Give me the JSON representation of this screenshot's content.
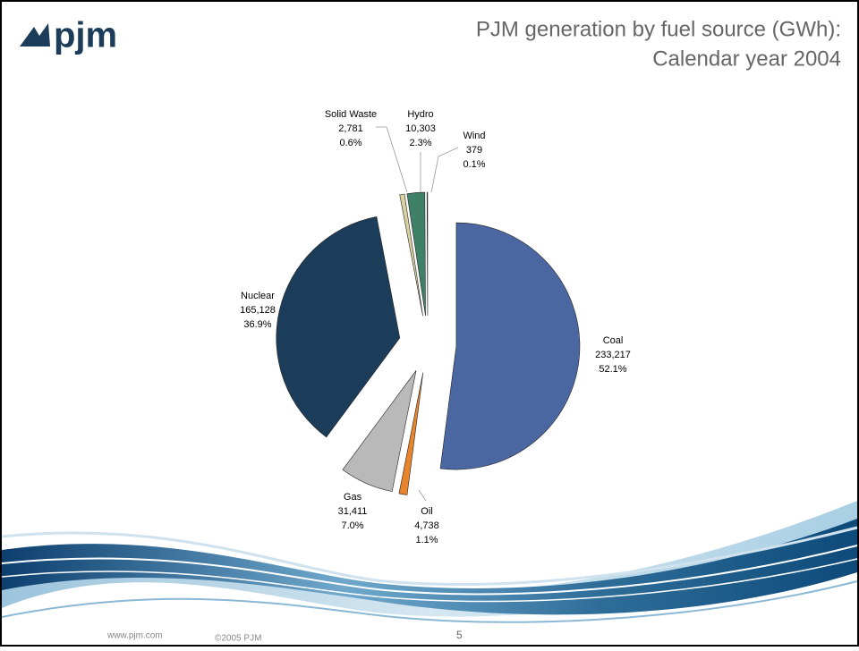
{
  "logo": "pjm",
  "footer": {
    "url": "www.pjm.com",
    "copyright": "©2005 PJM",
    "page": "5"
  },
  "chart_data": {
    "type": "pie",
    "title": "PJM generation by fuel source (GWh):",
    "subtitle": "Calendar year 2004",
    "categories": [
      "Coal",
      "Oil",
      "Gas",
      "Nuclear",
      "Solid Waste",
      "Hydro",
      "Wind"
    ],
    "values": [
      233217,
      4738,
      31411,
      165128,
      2781,
      10303,
      379
    ],
    "value_labels": [
      "233,217",
      "4,738",
      "31,411",
      "165,128",
      "2,781",
      "10,303",
      "379"
    ],
    "percents": [
      52.1,
      1.1,
      7.0,
      36.9,
      0.6,
      2.3,
      0.1
    ],
    "percent_labels": [
      "52.1%",
      "1.1%",
      "7.0%",
      "36.9%",
      "0.6%",
      "2.3%",
      "0.1%"
    ],
    "colors": [
      "#4a67a1",
      "#e8852c",
      "#b9b9b9",
      "#1b3d5a",
      "#d8d2a0",
      "#3f8069",
      "#e6eee6"
    ]
  }
}
